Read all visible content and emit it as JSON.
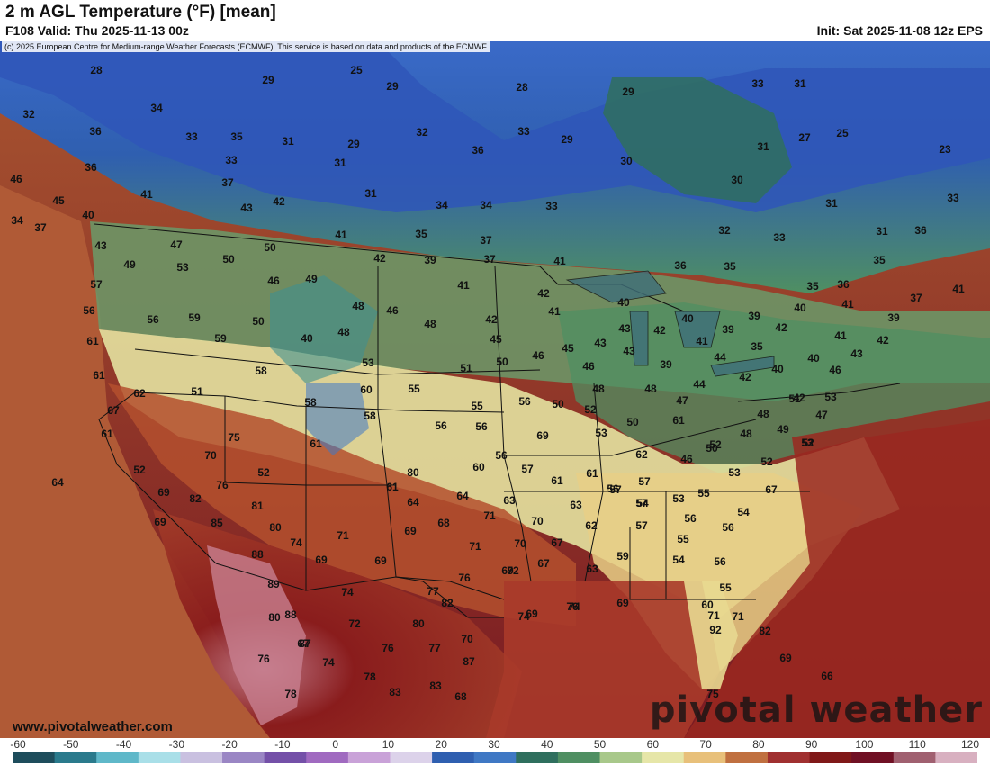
{
  "header": {
    "title": "2 m AGL Temperature (°F) [mean]",
    "valid": "F108 Valid: Thu 2025-11-13 00z",
    "init": "Init: Sat 2025-11-08 12z EPS"
  },
  "credit": "(c) 2025 European Centre for Medium-range Weather Forecasts (ECMWF). This service is based on data and products of the ECMWF.",
  "website": "www.pivotalweather.com",
  "brand": "pivotal weather",
  "legend": {
    "ticks": [
      "-60",
      "-50",
      "-40",
      "-30",
      "-20",
      "-10",
      "0",
      "10",
      "20",
      "30",
      "40",
      "50",
      "60",
      "70",
      "80",
      "90",
      "100",
      "110",
      "120"
    ],
    "colors": [
      "#1e4d5c",
      "#2a7a8c",
      "#5fb8c9",
      "#a9dfe8",
      "#c9c0e0",
      "#9a86c4",
      "#7450a8",
      "#a06ac0",
      "#c9a2d8",
      "#dcd2ea",
      "#2f5fb0",
      "#3f78c4",
      "#2f6f5e",
      "#4f8f62",
      "#a8c88a",
      "#e6e6a8",
      "#e8c07a",
      "#c07040",
      "#a03030",
      "#801818",
      "#701024",
      "#a06070",
      "#d8b0c0"
    ]
  },
  "temperatures": [
    {
      "value": "28"
    },
    {
      "value": "25"
    },
    {
      "value": "29"
    },
    {
      "value": "29"
    },
    {
      "value": "28"
    },
    {
      "value": "29"
    },
    {
      "value": "33"
    },
    {
      "value": "31"
    },
    {
      "value": "32"
    },
    {
      "value": "34"
    },
    {
      "value": "36"
    },
    {
      "value": "33"
    },
    {
      "value": "35"
    },
    {
      "value": "31"
    },
    {
      "value": "29"
    },
    {
      "value": "32"
    },
    {
      "value": "33"
    },
    {
      "value": "29"
    },
    {
      "value": "27"
    },
    {
      "value": "25"
    },
    {
      "value": "23"
    },
    {
      "value": "36"
    },
    {
      "value": "33"
    },
    {
      "value": "31"
    },
    {
      "value": "36"
    },
    {
      "value": "30"
    },
    {
      "value": "31"
    },
    {
      "value": "30"
    },
    {
      "value": "37"
    },
    {
      "value": "31"
    },
    {
      "value": "34"
    },
    {
      "value": "34"
    },
    {
      "value": "33"
    },
    {
      "value": "31"
    },
    {
      "value": "33"
    },
    {
      "value": "46"
    },
    {
      "value": "41"
    },
    {
      "value": "42"
    },
    {
      "value": "43"
    },
    {
      "value": "45"
    },
    {
      "value": "40"
    },
    {
      "value": "34"
    },
    {
      "value": "37"
    },
    {
      "value": "32"
    },
    {
      "value": "33"
    },
    {
      "value": "31"
    },
    {
      "value": "36"
    },
    {
      "value": "43"
    },
    {
      "value": "47"
    },
    {
      "value": "50"
    },
    {
      "value": "41"
    },
    {
      "value": "35"
    },
    {
      "value": "37"
    },
    {
      "value": "41"
    },
    {
      "value": "36"
    },
    {
      "value": "35"
    },
    {
      "value": "35"
    },
    {
      "value": "36"
    },
    {
      "value": "37"
    },
    {
      "value": "41"
    },
    {
      "value": "35"
    },
    {
      "value": "49"
    },
    {
      "value": "53"
    },
    {
      "value": "50"
    },
    {
      "value": "42"
    },
    {
      "value": "39"
    },
    {
      "value": "37"
    },
    {
      "value": "57"
    },
    {
      "value": "46"
    },
    {
      "value": "49"
    },
    {
      "value": "41"
    },
    {
      "value": "42"
    },
    {
      "value": "40"
    },
    {
      "value": "40"
    },
    {
      "value": "39"
    },
    {
      "value": "41"
    },
    {
      "value": "39"
    },
    {
      "value": "56"
    },
    {
      "value": "56"
    },
    {
      "value": "59"
    },
    {
      "value": "50"
    },
    {
      "value": "48"
    },
    {
      "value": "46"
    },
    {
      "value": "42"
    },
    {
      "value": "41"
    },
    {
      "value": "43"
    },
    {
      "value": "42"
    },
    {
      "value": "40"
    },
    {
      "value": "39"
    },
    {
      "value": "42"
    },
    {
      "value": "61"
    },
    {
      "value": "59"
    },
    {
      "value": "40"
    },
    {
      "value": "48"
    },
    {
      "value": "48"
    },
    {
      "value": "45"
    },
    {
      "value": "45"
    },
    {
      "value": "43"
    },
    {
      "value": "41"
    },
    {
      "value": "35"
    },
    {
      "value": "41"
    },
    {
      "value": "42"
    },
    {
      "value": "61"
    },
    {
      "value": "58"
    },
    {
      "value": "53"
    },
    {
      "value": "51"
    },
    {
      "value": "50"
    },
    {
      "value": "46"
    },
    {
      "value": "46"
    },
    {
      "value": "43"
    },
    {
      "value": "39"
    },
    {
      "value": "44"
    },
    {
      "value": "40"
    },
    {
      "value": "40"
    },
    {
      "value": "43"
    },
    {
      "value": "62"
    },
    {
      "value": "51"
    },
    {
      "value": "60"
    },
    {
      "value": "55"
    },
    {
      "value": "42"
    },
    {
      "value": "46"
    },
    {
      "value": "67"
    },
    {
      "value": "58"
    },
    {
      "value": "55"
    },
    {
      "value": "56"
    },
    {
      "value": "50"
    },
    {
      "value": "48"
    },
    {
      "value": "48"
    },
    {
      "value": "44"
    },
    {
      "value": "42"
    },
    {
      "value": "53"
    },
    {
      "value": "58"
    },
    {
      "value": "56"
    },
    {
      "value": "56"
    },
    {
      "value": "52"
    },
    {
      "value": "47"
    },
    {
      "value": "48"
    },
    {
      "value": "47"
    },
    {
      "value": "50"
    },
    {
      "value": "61"
    },
    {
      "value": "51"
    },
    {
      "value": "61"
    },
    {
      "value": "69"
    },
    {
      "value": "75"
    },
    {
      "value": "61"
    },
    {
      "value": "53"
    },
    {
      "value": "52"
    },
    {
      "value": "48"
    },
    {
      "value": "49"
    },
    {
      "value": "52"
    },
    {
      "value": "53"
    },
    {
      "value": "70"
    },
    {
      "value": "52"
    },
    {
      "value": "62"
    },
    {
      "value": "56"
    },
    {
      "value": "57"
    },
    {
      "value": "52"
    },
    {
      "value": "46"
    },
    {
      "value": "50"
    },
    {
      "value": "52"
    },
    {
      "value": "76"
    },
    {
      "value": "80"
    },
    {
      "value": "60"
    },
    {
      "value": "61"
    },
    {
      "value": "61"
    },
    {
      "value": "56"
    },
    {
      "value": "57"
    },
    {
      "value": "53"
    },
    {
      "value": "54"
    },
    {
      "value": "53"
    },
    {
      "value": "64"
    },
    {
      "value": "69"
    },
    {
      "value": "82"
    },
    {
      "value": "81"
    },
    {
      "value": "61"
    },
    {
      "value": "64"
    },
    {
      "value": "63"
    },
    {
      "value": "57"
    },
    {
      "value": "55"
    },
    {
      "value": "67"
    },
    {
      "value": "85"
    },
    {
      "value": "69"
    },
    {
      "value": "64"
    },
    {
      "value": "63"
    },
    {
      "value": "57"
    },
    {
      "value": "56"
    },
    {
      "value": "54"
    },
    {
      "value": "80"
    },
    {
      "value": "71"
    },
    {
      "value": "71"
    },
    {
      "value": "68"
    },
    {
      "value": "70"
    },
    {
      "value": "62"
    },
    {
      "value": "57"
    },
    {
      "value": "55"
    },
    {
      "value": "56"
    },
    {
      "value": "74"
    },
    {
      "value": "69"
    },
    {
      "value": "69"
    },
    {
      "value": "70"
    },
    {
      "value": "67"
    },
    {
      "value": "88"
    },
    {
      "value": "69"
    },
    {
      "value": "71"
    },
    {
      "value": "69"
    },
    {
      "value": "72"
    },
    {
      "value": "67"
    },
    {
      "value": "63"
    },
    {
      "value": "59"
    },
    {
      "value": "54"
    },
    {
      "value": "56"
    },
    {
      "value": "89"
    },
    {
      "value": "74"
    },
    {
      "value": "77"
    },
    {
      "value": "76"
    },
    {
      "value": "69"
    },
    {
      "value": "55"
    },
    {
      "value": "88"
    },
    {
      "value": "72"
    },
    {
      "value": "82"
    },
    {
      "value": "80"
    },
    {
      "value": "74"
    },
    {
      "value": "76"
    },
    {
      "value": "74"
    },
    {
      "value": "60"
    },
    {
      "value": "69"
    },
    {
      "value": "87"
    },
    {
      "value": "80"
    },
    {
      "value": "76"
    },
    {
      "value": "77"
    },
    {
      "value": "70"
    },
    {
      "value": "71"
    },
    {
      "value": "71"
    },
    {
      "value": "82"
    },
    {
      "value": "92"
    },
    {
      "value": "76"
    },
    {
      "value": "74"
    },
    {
      "value": "87"
    },
    {
      "value": "69"
    },
    {
      "value": "67"
    },
    {
      "value": "78"
    },
    {
      "value": "83"
    },
    {
      "value": "83"
    },
    {
      "value": "68"
    },
    {
      "value": "75"
    },
    {
      "value": "78"
    },
    {
      "value": "66"
    }
  ]
}
